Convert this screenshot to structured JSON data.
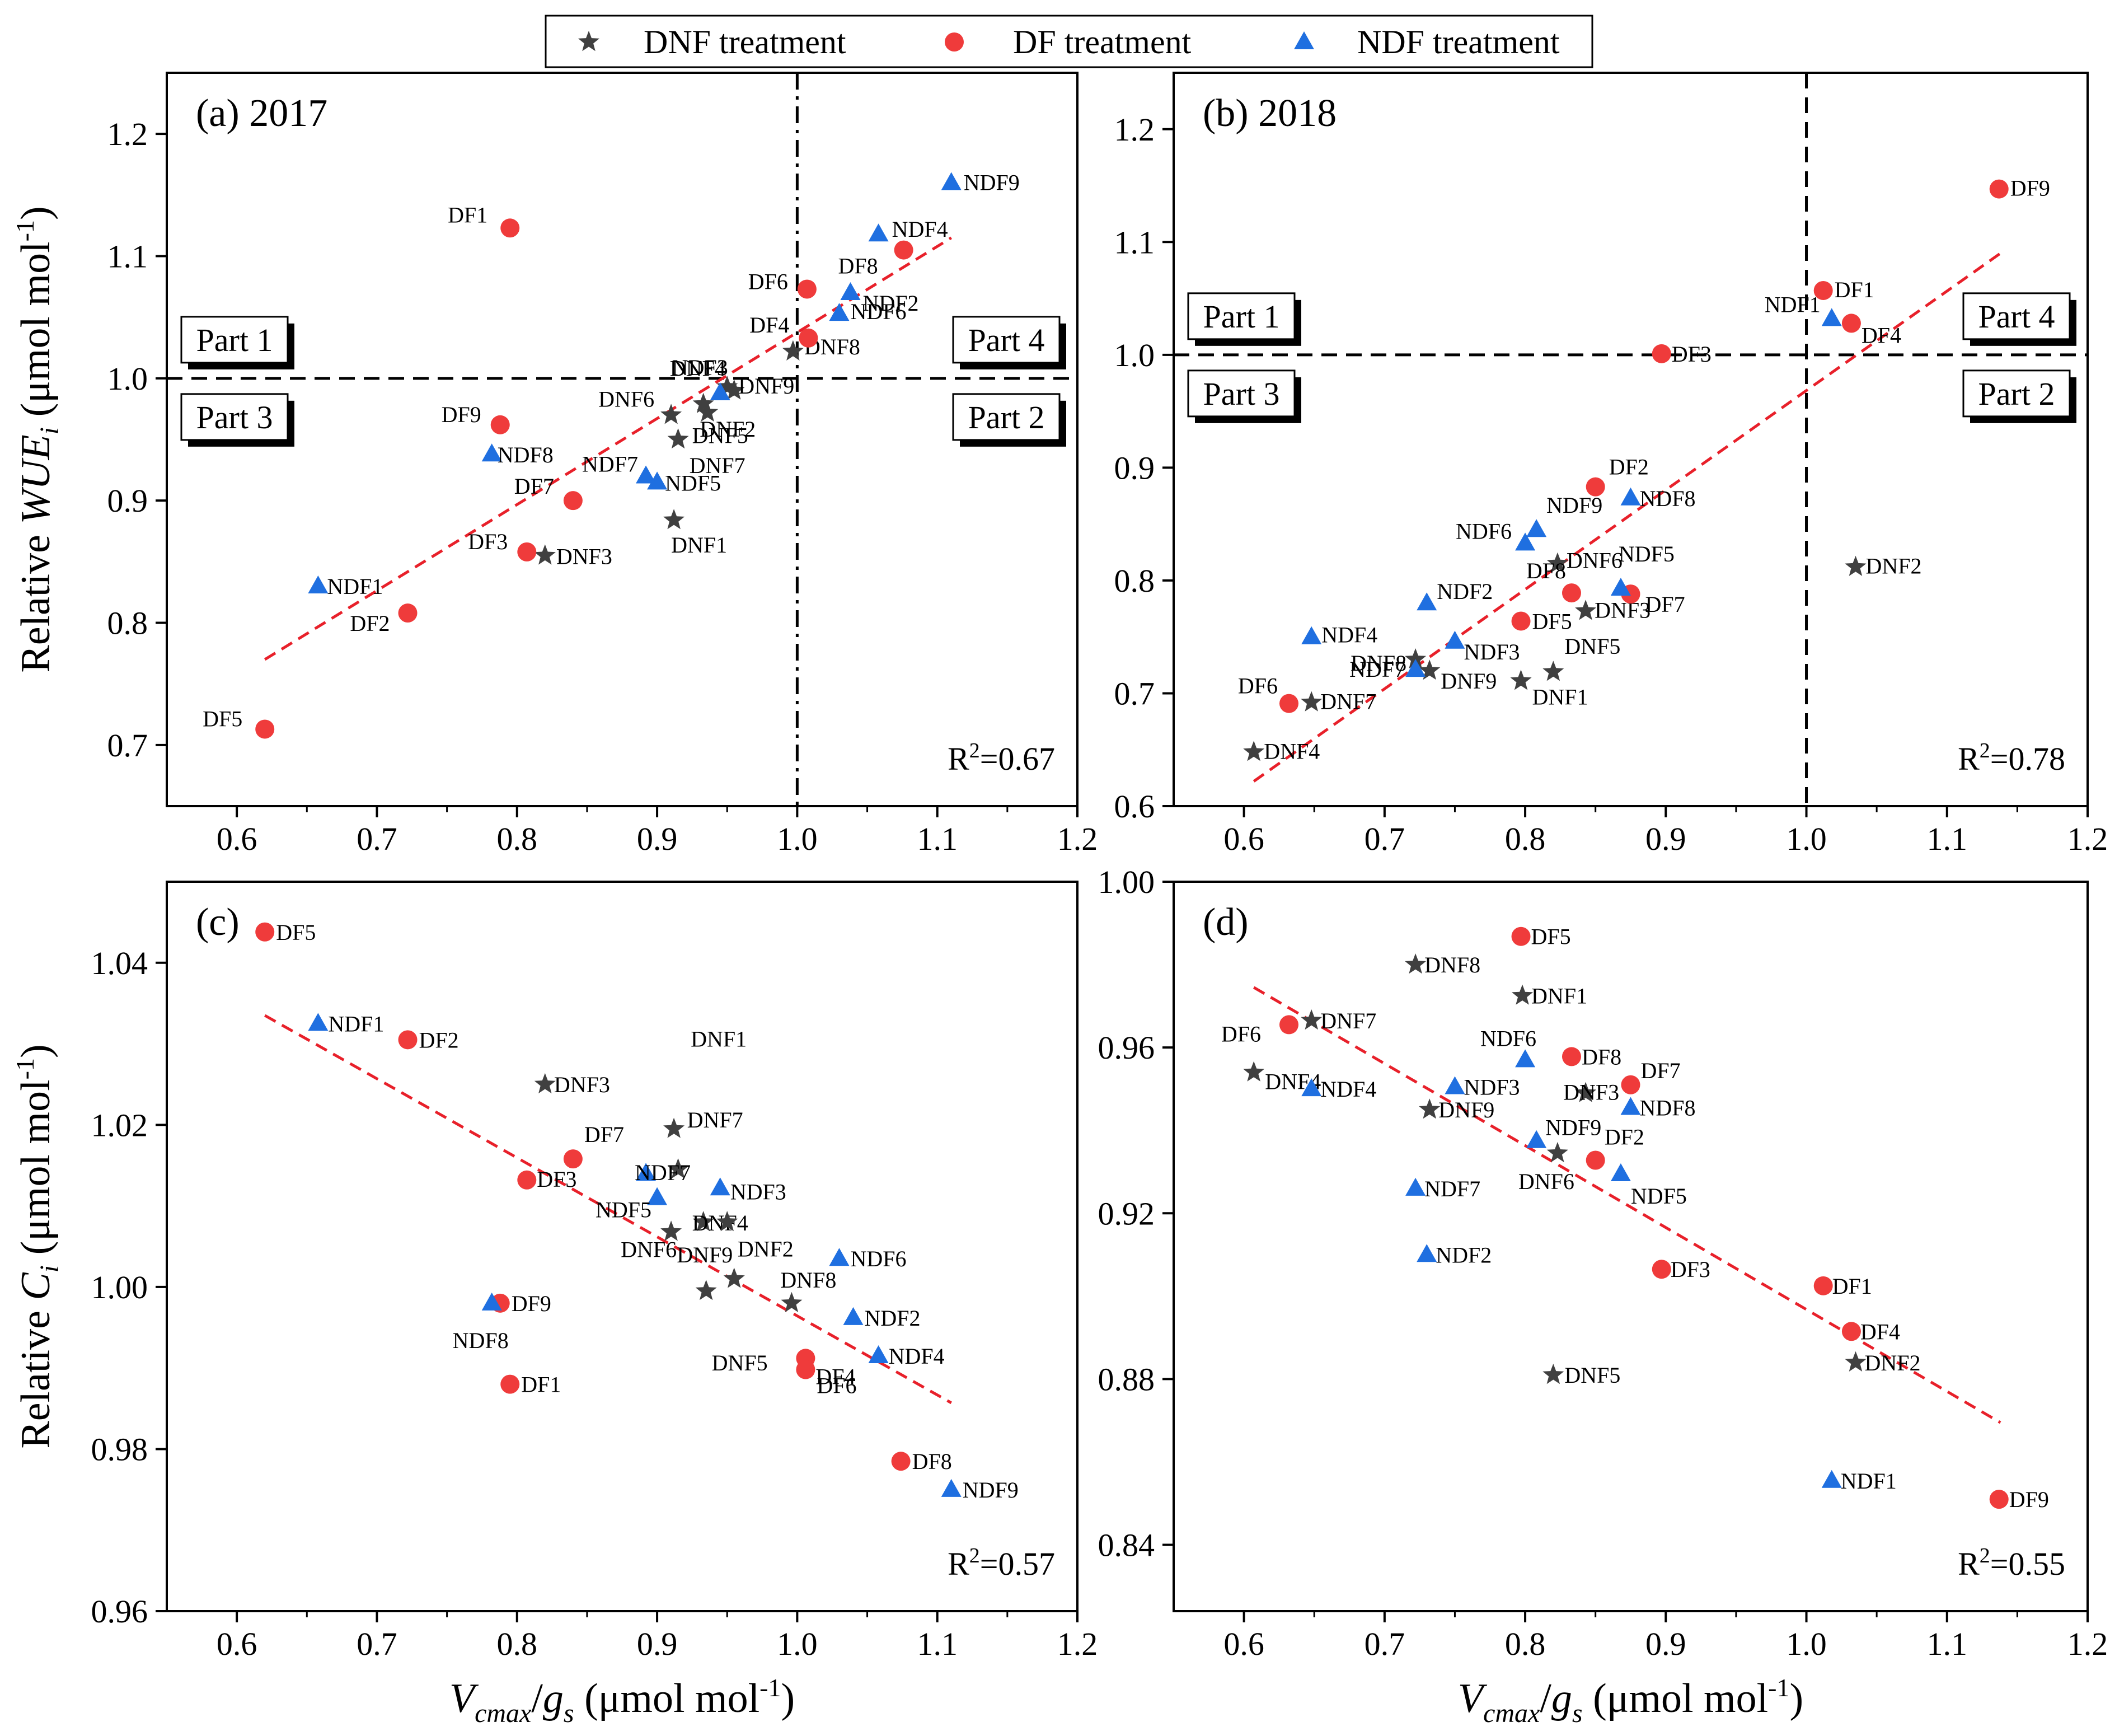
{
  "legend": [
    {
      "label": "DNF treatment",
      "marker": "star",
      "color": "#404040"
    },
    {
      "label": "DF treatment",
      "marker": "circle",
      "color": "#ef3b3b"
    },
    {
      "label": "NDF treatment",
      "marker": "triangle",
      "color": "#1f6fe0"
    }
  ],
  "part_labels": [
    "Part 1",
    "Part 2",
    "Part 3",
    "Part 4"
  ],
  "colors": {
    "fit_line": "#e8202a",
    "ref_line": "#000000"
  },
  "chart_data": [
    {
      "type": "scatter",
      "panel": "(a) 2017",
      "xlabel": "Vcmax/gs (μmol mol-1)",
      "ylabel": "Relative WUEi (μmol mol-1)",
      "ylabel_parts": {
        "prefix": "Relative ",
        "var": "WUE",
        "sub": "i",
        "unit": " (μmol mol",
        "sup": "-1",
        "close": ")"
      },
      "xlim": [
        0.55,
        1.2
      ],
      "ylim": [
        0.65,
        1.25
      ],
      "xticks": [
        0.6,
        0.7,
        0.8,
        0.9,
        1.0,
        1.1,
        1.2
      ],
      "xtick_labels": [
        "0.6",
        "0.7",
        "0.8",
        "0.9",
        "1.0",
        "1.1",
        "1.2"
      ],
      "yticks": [
        0.7,
        0.8,
        0.9,
        1.0,
        1.1,
        1.2
      ],
      "ytick_labels": [
        "0.7",
        "0.8",
        "0.9",
        "1.0",
        "1.1",
        "1.2"
      ],
      "r2_text": "R2=0.67",
      "r2_parts": {
        "base": "R",
        "sup": "2",
        "rest": "=0.67"
      },
      "fit": {
        "x": [
          0.62,
          1.11
        ],
        "y": [
          0.77,
          1.115
        ]
      },
      "refline_x": {
        "value": 1.0,
        "style": "dash-dot"
      },
      "refline_y": {
        "value": 1.0,
        "style": "dashed"
      },
      "parts": true,
      "series": [
        {
          "name": "DNF treatment",
          "points": [
            {
              "label": "DNF1",
              "x": 0.912,
              "y": 0.884
            },
            {
              "label": "DNF2",
              "x": 0.936,
              "y": 0.972
            },
            {
              "label": "DNF3",
              "x": 0.82,
              "y": 0.855
            },
            {
              "label": "DNF4",
              "x": 0.955,
              "y": 0.99
            },
            {
              "label": "DNF5",
              "x": 0.933,
              "y": 0.979
            },
            {
              "label": "DNF6",
              "x": 0.91,
              "y": 0.97
            },
            {
              "label": "DNF7",
              "x": 0.915,
              "y": 0.95
            },
            {
              "label": "DNF8",
              "x": 0.997,
              "y": 1.022
            },
            {
              "label": "DNF9",
              "x": 0.95,
              "y": 0.993
            }
          ]
        },
        {
          "name": "DF treatment",
          "points": [
            {
              "label": "DF1",
              "x": 0.795,
              "y": 1.123
            },
            {
              "label": "DF2",
              "x": 0.722,
              "y": 0.808
            },
            {
              "label": "DF3",
              "x": 0.807,
              "y": 0.858
            },
            {
              "label": "DF4",
              "x": 1.008,
              "y": 1.033
            },
            {
              "label": "DF5",
              "x": 0.62,
              "y": 0.713
            },
            {
              "label": "DF6",
              "x": 1.007,
              "y": 1.073
            },
            {
              "label": "DF7",
              "x": 0.84,
              "y": 0.9
            },
            {
              "label": "DF8",
              "x": 1.076,
              "y": 1.105
            },
            {
              "label": "DF9",
              "x": 0.788,
              "y": 0.962
            }
          ]
        },
        {
          "name": "NDF treatment",
          "points": [
            {
              "label": "NDF1",
              "x": 0.658,
              "y": 0.83
            },
            {
              "label": "NDF2",
              "x": 1.038,
              "y": 1.07
            },
            {
              "label": "NDF3",
              "x": 0.945,
              "y": 0.988
            },
            {
              "label": "NDF4",
              "x": 1.058,
              "y": 1.118
            },
            {
              "label": "NDF5",
              "x": 0.9,
              "y": 0.915
            },
            {
              "label": "NDF6",
              "x": 1.03,
              "y": 1.053
            },
            {
              "label": "NDF7",
              "x": 0.892,
              "y": 0.92
            },
            {
              "label": "NDF8",
              "x": 0.782,
              "y": 0.938
            },
            {
              "label": "NDF9",
              "x": 1.11,
              "y": 1.16
            }
          ]
        }
      ]
    },
    {
      "type": "scatter",
      "panel": "(b) 2018",
      "xlabel": "",
      "ylabel": "",
      "xlim": [
        0.55,
        1.2
      ],
      "ylim": [
        0.6,
        1.25
      ],
      "xticks": [
        0.6,
        0.7,
        0.8,
        0.9,
        1.0,
        1.1,
        1.2
      ],
      "xtick_labels": [
        "0.6",
        "0.7",
        "0.8",
        "0.9",
        "1.0",
        "1.1",
        "1.2"
      ],
      "yticks": [
        0.6,
        0.7,
        0.8,
        0.9,
        1.0,
        1.1,
        1.2
      ],
      "ytick_labels": [
        "0.6",
        "0.7",
        "0.8",
        "0.9",
        "1.0",
        "1.1",
        "1.2"
      ],
      "r2_text": "R2=0.78",
      "r2_parts": {
        "base": "R",
        "sup": "2",
        "rest": "=0.78"
      },
      "fit": {
        "x": [
          0.607,
          1.138
        ],
        "y": [
          0.622,
          1.09
        ]
      },
      "refline_x": {
        "value": 1.0,
        "style": "dashed"
      },
      "refline_y": {
        "value": 1.0,
        "style": "dashed"
      },
      "parts": true,
      "series": [
        {
          "name": "DNF treatment",
          "points": [
            {
              "label": "DNF1",
              "x": 0.797,
              "y": 0.711
            },
            {
              "label": "DNF2",
              "x": 1.035,
              "y": 0.812
            },
            {
              "label": "DNF3",
              "x": 0.843,
              "y": 0.773
            },
            {
              "label": "DNF4",
              "x": 0.607,
              "y": 0.648
            },
            {
              "label": "DNF5",
              "x": 0.82,
              "y": 0.719
            },
            {
              "label": "DNF6",
              "x": 0.823,
              "y": 0.815
            },
            {
              "label": "DNF7",
              "x": 0.648,
              "y": 0.692
            },
            {
              "label": "DNF8",
              "x": 0.722,
              "y": 0.73
            },
            {
              "label": "DNF9",
              "x": 0.732,
              "y": 0.72
            }
          ]
        },
        {
          "name": "DF treatment",
          "points": [
            {
              "label": "DF1",
              "x": 1.012,
              "y": 1.057
            },
            {
              "label": "DF2",
              "x": 0.85,
              "y": 0.883
            },
            {
              "label": "DF3",
              "x": 0.897,
              "y": 1.001
            },
            {
              "label": "DF4",
              "x": 1.032,
              "y": 1.028
            },
            {
              "label": "DF5",
              "x": 0.797,
              "y": 0.764
            },
            {
              "label": "DF6",
              "x": 0.632,
              "y": 0.691
            },
            {
              "label": "DF7",
              "x": 0.875,
              "y": 0.788
            },
            {
              "label": "DF8",
              "x": 0.833,
              "y": 0.789
            },
            {
              "label": "DF9",
              "x": 1.137,
              "y": 1.147
            }
          ]
        },
        {
          "name": "NDF treatment",
          "points": [
            {
              "label": "NDF1",
              "x": 1.018,
              "y": 1.032
            },
            {
              "label": "NDF2",
              "x": 0.73,
              "y": 0.78
            },
            {
              "label": "NDF3",
              "x": 0.75,
              "y": 0.746
            },
            {
              "label": "NDF4",
              "x": 0.648,
              "y": 0.75
            },
            {
              "label": "NDF5",
              "x": 0.868,
              "y": 0.793
            },
            {
              "label": "NDF6",
              "x": 0.8,
              "y": 0.833
            },
            {
              "label": "NDF7",
              "x": 0.722,
              "y": 0.721
            },
            {
              "label": "NDF8",
              "x": 0.875,
              "y": 0.873
            },
            {
              "label": "NDF9",
              "x": 0.808,
              "y": 0.845
            }
          ]
        }
      ]
    },
    {
      "type": "scatter",
      "panel": "(c)",
      "xlabel": "Vcmax/gs (μmol mol-1)",
      "xlabel_parts": {
        "var": "V",
        "sub": "cmax",
        "slash": "/",
        "var2": "g",
        "sub2": "s",
        "unit": " (μmol mol",
        "sup": "-1",
        "close": ")"
      },
      "ylabel": "Relative Ci (μmol mol-1)",
      "ylabel_parts": {
        "prefix": "Relative ",
        "var": "C",
        "sub": "i",
        "unit": " (μmol mol",
        "sup": "-1",
        "close": ")"
      },
      "xlim": [
        0.55,
        1.2
      ],
      "ylim": [
        0.96,
        1.05
      ],
      "xticks": [
        0.6,
        0.7,
        0.8,
        0.9,
        1.0,
        1.1,
        1.2
      ],
      "xtick_labels": [
        "0.6",
        "0.7",
        "0.8",
        "0.9",
        "1.0",
        "1.1",
        "1.2"
      ],
      "yticks": [
        0.96,
        0.98,
        1.0,
        1.02,
        1.04
      ],
      "ytick_labels": [
        "0.96",
        "0.98",
        "1.00",
        "1.02",
        "1.04"
      ],
      "r2_text": "R2=0.57",
      "r2_parts": {
        "base": "R",
        "sup": "2",
        "rest": "=0.57"
      },
      "fit": {
        "x": [
          0.62,
          1.11
        ],
        "y": [
          1.0335,
          0.9857
        ]
      },
      "parts": false,
      "series": [
        {
          "name": "DNF treatment",
          "points": [
            {
              "label": "DNF1",
              "x": 0.912,
              "y": 1.0195
            },
            {
              "label": "DNF2",
              "x": 0.955,
              "y": 1.001
            },
            {
              "label": "DNF3",
              "x": 0.82,
              "y": 1.025
            },
            {
              "label": "DNF4",
              "x": 0.933,
              "y": 1.008
            },
            {
              "label": "DNF5",
              "x": 0.935,
              "y": 0.9995
            },
            {
              "label": "DNF6",
              "x": 0.91,
              "y": 1.0068
            },
            {
              "label": "DNF7",
              "x": 0.915,
              "y": 1.0145
            },
            {
              "label": "DNF8",
              "x": 0.996,
              "y": 0.998
            },
            {
              "label": "DNF9",
              "x": 0.95,
              "y": 1.008
            }
          ]
        },
        {
          "name": "DF treatment",
          "points": [
            {
              "label": "DF1",
              "x": 0.795,
              "y": 0.988
            },
            {
              "label": "DF2",
              "x": 0.722,
              "y": 1.0305
            },
            {
              "label": "DF3",
              "x": 0.807,
              "y": 1.0132
            },
            {
              "label": "DF4",
              "x": 1.006,
              "y": 0.9912
            },
            {
              "label": "DF5",
              "x": 0.62,
              "y": 1.0438
            },
            {
              "label": "DF6",
              "x": 1.006,
              "y": 0.9898
            },
            {
              "label": "DF7",
              "x": 0.84,
              "y": 1.0158
            },
            {
              "label": "DF8",
              "x": 1.074,
              "y": 0.9785
            },
            {
              "label": "DF9",
              "x": 0.788,
              "y": 0.998
            }
          ]
        },
        {
          "name": "NDF treatment",
          "points": [
            {
              "label": "NDF1",
              "x": 0.658,
              "y": 1.0325
            },
            {
              "label": "NDF2",
              "x": 1.04,
              "y": 0.9962
            },
            {
              "label": "NDF3",
              "x": 0.945,
              "y": 1.0122
            },
            {
              "label": "NDF4",
              "x": 1.058,
              "y": 0.9915
            },
            {
              "label": "NDF5",
              "x": 0.9,
              "y": 1.011
            },
            {
              "label": "NDF6",
              "x": 1.03,
              "y": 1.0035
            },
            {
              "label": "NDF7",
              "x": 0.892,
              "y": 1.014
            },
            {
              "label": "NDF8",
              "x": 0.782,
              "y": 0.998
            },
            {
              "label": "NDF9",
              "x": 1.11,
              "y": 0.975
            }
          ]
        }
      ]
    },
    {
      "type": "scatter",
      "panel": "(d)",
      "xlabel": "Vcmax/gs (μmol mol-1)",
      "xlabel_parts": {
        "var": "V",
        "sub": "cmax",
        "slash": "/",
        "var2": "g",
        "sub2": "s",
        "unit": " (μmol mol",
        "sup": "-1",
        "close": ")"
      },
      "ylabel": "",
      "xlim": [
        0.55,
        1.2
      ],
      "ylim": [
        0.824,
        1.0
      ],
      "xticks": [
        0.6,
        0.7,
        0.8,
        0.9,
        1.0,
        1.1,
        1.2
      ],
      "xtick_labels": [
        "0.6",
        "0.7",
        "0.8",
        "0.9",
        "1.0",
        "1.1",
        "1.2"
      ],
      "yticks": [
        0.84,
        0.88,
        0.92,
        0.96,
        1.0
      ],
      "ytick_labels": [
        "0.84",
        "0.88",
        "0.92",
        "0.96",
        "1.00"
      ],
      "r2_text": "R2=0.55",
      "r2_parts": {
        "base": "R",
        "sup": "2",
        "rest": "=0.55"
      },
      "fit": {
        "x": [
          0.607,
          1.138
        ],
        "y": [
          0.9745,
          0.8695
        ]
      },
      "parts": false,
      "series": [
        {
          "name": "DNF treatment",
          "points": [
            {
              "label": "DNF1",
              "x": 0.798,
              "y": 0.9725
            },
            {
              "label": "DNF2",
              "x": 1.035,
              "y": 0.884
            },
            {
              "label": "DNF3",
              "x": 0.843,
              "y": 0.949
            },
            {
              "label": "DNF4",
              "x": 0.607,
              "y": 0.954
            },
            {
              "label": "DNF5",
              "x": 0.82,
              "y": 0.881
            },
            {
              "label": "DNF6",
              "x": 0.823,
              "y": 0.9345
            },
            {
              "label": "DNF7",
              "x": 0.648,
              "y": 0.9665
            },
            {
              "label": "DNF8",
              "x": 0.722,
              "y": 0.98
            },
            {
              "label": "DNF9",
              "x": 0.732,
              "y": 0.945
            }
          ]
        },
        {
          "name": "DF treatment",
          "points": [
            {
              "label": "DF1",
              "x": 1.012,
              "y": 0.9025
            },
            {
              "label": "DF2",
              "x": 0.85,
              "y": 0.9328
            },
            {
              "label": "DF3",
              "x": 0.897,
              "y": 0.9065
            },
            {
              "label": "DF4",
              "x": 1.032,
              "y": 0.8915
            },
            {
              "label": "DF5",
              "x": 0.797,
              "y": 0.9868
            },
            {
              "label": "DF6",
              "x": 0.632,
              "y": 0.9655
            },
            {
              "label": "DF7",
              "x": 0.875,
              "y": 0.951
            },
            {
              "label": "DF8",
              "x": 0.833,
              "y": 0.9578
            },
            {
              "label": "DF9",
              "x": 1.137,
              "y": 0.851
            }
          ]
        },
        {
          "name": "NDF treatment",
          "points": [
            {
              "label": "NDF1",
              "x": 1.018,
              "y": 0.8555
            },
            {
              "label": "NDF2",
              "x": 0.73,
              "y": 0.91
            },
            {
              "label": "NDF3",
              "x": 0.75,
              "y": 0.9505
            },
            {
              "label": "NDF4",
              "x": 0.648,
              "y": 0.95
            },
            {
              "label": "NDF5",
              "x": 0.868,
              "y": 0.9295
            },
            {
              "label": "NDF6",
              "x": 0.8,
              "y": 0.957
            },
            {
              "label": "NDF7",
              "x": 0.722,
              "y": 0.926
            },
            {
              "label": "NDF8",
              "x": 0.875,
              "y": 0.9455
            },
            {
              "label": "NDF9",
              "x": 0.808,
              "y": 0.9375
            }
          ]
        }
      ]
    }
  ]
}
